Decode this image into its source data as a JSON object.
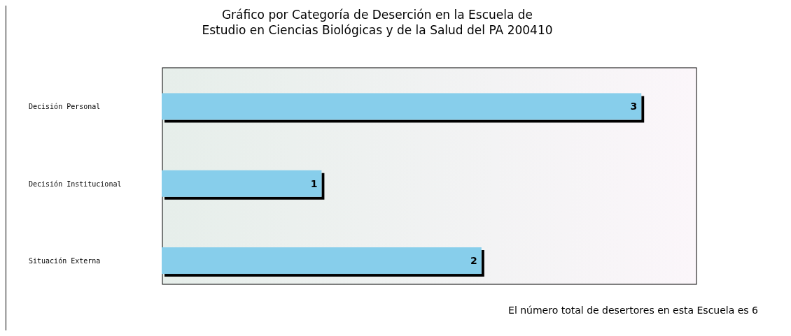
{
  "chart_data": {
    "type": "bar",
    "orientation": "horizontal",
    "title": "Gráfico por Categoría de Deserción en la Escuela de\nEstudio en Ciencias Biológicas y de la Salud del PA 200410",
    "categories": [
      "Decisión Personal",
      "Decisión Institucional",
      "Situación Externa"
    ],
    "values": [
      3,
      1,
      2
    ],
    "color": "#87ceeb",
    "data_labels": true,
    "tick_labels": "y",
    "annotations": [
      "El número total de desertores en esta Escuela es 6"
    ]
  }
}
